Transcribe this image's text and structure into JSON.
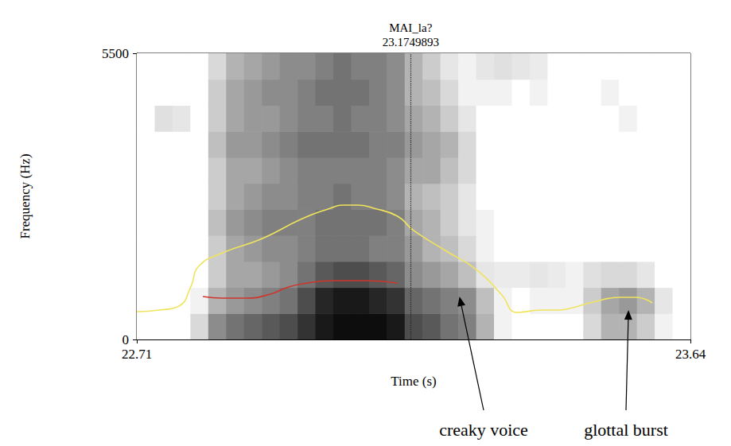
{
  "chart_data": {
    "type": "spectrogram",
    "x_label": "Time (s)",
    "y_label": "Frequency (Hz)",
    "xlim": [
      22.71,
      23.64
    ],
    "xticks": [
      22.71,
      23.64
    ],
    "ylim": [
      0,
      5500
    ],
    "yticks": [
      0,
      5500
    ],
    "grid": false,
    "spectrogram": {
      "t_edges": [
        22.71,
        22.74,
        22.77,
        22.8,
        22.83,
        22.86,
        22.89,
        22.92,
        22.95,
        22.98,
        23.01,
        23.04,
        23.07,
        23.1,
        23.13,
        23.16,
        23.19,
        23.22,
        23.25,
        23.28,
        23.31,
        23.34,
        23.37,
        23.4,
        23.43,
        23.46,
        23.49,
        23.52,
        23.55,
        23.58,
        23.61,
        23.64
      ],
      "f_edges": [
        0,
        500,
        1000,
        1500,
        2000,
        2500,
        3000,
        3500,
        4000,
        4500,
        5000,
        5500
      ],
      "intensity": [
        [
          0,
          0,
          0,
          0,
          0,
          0,
          0,
          0,
          0,
          0,
          0
        ],
        [
          0,
          0,
          0,
          0,
          0,
          0,
          0,
          0,
          0.12,
          0,
          0
        ],
        [
          0,
          0,
          0,
          0,
          0,
          0,
          0,
          0,
          0.1,
          0,
          0
        ],
        [
          0.15,
          0.05,
          0,
          0,
          0,
          0,
          0,
          0,
          0,
          0,
          0
        ],
        [
          0.45,
          0.3,
          0.2,
          0.2,
          0.25,
          0.2,
          0.2,
          0.25,
          0.2,
          0.2,
          0.15
        ],
        [
          0.55,
          0.4,
          0.35,
          0.35,
          0.4,
          0.35,
          0.35,
          0.4,
          0.35,
          0.35,
          0.3
        ],
        [
          0.6,
          0.45,
          0.35,
          0.4,
          0.45,
          0.4,
          0.35,
          0.4,
          0.4,
          0.4,
          0.35
        ],
        [
          0.65,
          0.5,
          0.4,
          0.45,
          0.5,
          0.45,
          0.4,
          0.45,
          0.4,
          0.45,
          0.4
        ],
        [
          0.7,
          0.55,
          0.45,
          0.45,
          0.5,
          0.45,
          0.45,
          0.5,
          0.45,
          0.45,
          0.45
        ],
        [
          0.8,
          0.7,
          0.55,
          0.5,
          0.5,
          0.5,
          0.5,
          0.55,
          0.5,
          0.5,
          0.45
        ],
        [
          0.9,
          0.85,
          0.65,
          0.55,
          0.55,
          0.5,
          0.5,
          0.55,
          0.5,
          0.55,
          0.5
        ],
        [
          0.95,
          0.9,
          0.7,
          0.55,
          0.55,
          0.55,
          0.5,
          0.55,
          0.55,
          0.55,
          0.55
        ],
        [
          0.95,
          0.9,
          0.7,
          0.55,
          0.55,
          0.5,
          0.5,
          0.55,
          0.5,
          0.55,
          0.5
        ],
        [
          0.95,
          0.85,
          0.65,
          0.5,
          0.55,
          0.5,
          0.5,
          0.5,
          0.5,
          0.5,
          0.5
        ],
        [
          0.9,
          0.8,
          0.6,
          0.5,
          0.5,
          0.45,
          0.45,
          0.5,
          0.45,
          0.45,
          0.45
        ],
        [
          0.7,
          0.6,
          0.45,
          0.4,
          0.35,
          0.3,
          0.35,
          0.4,
          0.35,
          0.3,
          0.3
        ],
        [
          0.65,
          0.55,
          0.4,
          0.3,
          0.3,
          0.25,
          0.35,
          0.35,
          0.3,
          0.25,
          0.2
        ],
        [
          0.55,
          0.5,
          0.35,
          0.25,
          0.2,
          0.2,
          0.25,
          0.3,
          0.2,
          0.15,
          0.1
        ],
        [
          0.5,
          0.45,
          0.25,
          0.15,
          0.1,
          0.1,
          0.15,
          0.15,
          0.1,
          0.05,
          0.05
        ],
        [
          0.3,
          0.25,
          0.1,
          0.05,
          0.05,
          0,
          0,
          0,
          0,
          0.05,
          0.1
        ],
        [
          0.05,
          0.05,
          0.08,
          0,
          0,
          0,
          0,
          0,
          0,
          0.05,
          0.12
        ],
        [
          0,
          0,
          0.08,
          0,
          0,
          0,
          0,
          0,
          0,
          0,
          0.1
        ],
        [
          0,
          0.05,
          0.1,
          0,
          0,
          0,
          0,
          0,
          0,
          0.05,
          0.08
        ],
        [
          0,
          0.05,
          0.08,
          0,
          0,
          0,
          0,
          0,
          0,
          0,
          0
        ],
        [
          0,
          0.05,
          0.05,
          0,
          0,
          0,
          0,
          0,
          0,
          0,
          0
        ],
        [
          0.15,
          0.2,
          0.12,
          0,
          0,
          0,
          0,
          0,
          0,
          0,
          0
        ],
        [
          0.3,
          0.35,
          0.15,
          0,
          0,
          0,
          0,
          0,
          0,
          0.05,
          0
        ],
        [
          0.3,
          0.4,
          0.15,
          0,
          0,
          0,
          0,
          0,
          0.05,
          0,
          0
        ],
        [
          0.2,
          0.3,
          0.1,
          0,
          0,
          0,
          0,
          0,
          0,
          0,
          0
        ],
        [
          0.05,
          0.1,
          0,
          0,
          0,
          0,
          0,
          0,
          0,
          0,
          0
        ],
        [
          0,
          0,
          0,
          0,
          0,
          0,
          0,
          0,
          0,
          0,
          0
        ]
      ]
    },
    "series": [
      {
        "color": "#f0e45c",
        "x": [
          22.71,
          22.747,
          22.781,
          22.801,
          22.814,
          22.854,
          22.921,
          22.988,
          23.035,
          23.055,
          23.081,
          23.108,
          23.148,
          23.175,
          23.228,
          23.282,
          23.322,
          23.349,
          23.389,
          23.416,
          23.442,
          23.476,
          23.522,
          23.549,
          23.576
        ],
        "values": [
          535,
          565,
          642,
          1023,
          1406,
          1665,
          1940,
          2322,
          2521,
          2582,
          2582,
          2521,
          2368,
          2094,
          1711,
          1329,
          871,
          519,
          565,
          565,
          611,
          718,
          809,
          809,
          703
        ]
      },
      {
        "color": "#d0342c",
        "x": [
          22.821,
          22.854,
          22.894,
          22.934,
          22.961,
          22.988,
          23.041,
          23.095,
          23.148
        ],
        "values": [
          825,
          794,
          794,
          871,
          993,
          1070,
          1131,
          1131,
          1085
        ]
      }
    ],
    "cursor": {
      "label": "MAI_la?",
      "time": 23.1749893
    },
    "annotations": [
      {
        "text": "creaky voice",
        "color": "#2b7bbf",
        "box": {
          "x": [
            23.159,
            23.375
          ],
          "y": [
            138,
            5348
          ]
        },
        "arrow_to": [
          23.252,
          825
        ]
      },
      {
        "text": "glottal burst",
        "color": "#2b7bbf",
        "box": {
          "x": [
            23.424,
            23.635
          ],
          "y": [
            138,
            1406
          ]
        },
        "arrow_to": [
          23.536,
          565
        ]
      }
    ]
  }
}
